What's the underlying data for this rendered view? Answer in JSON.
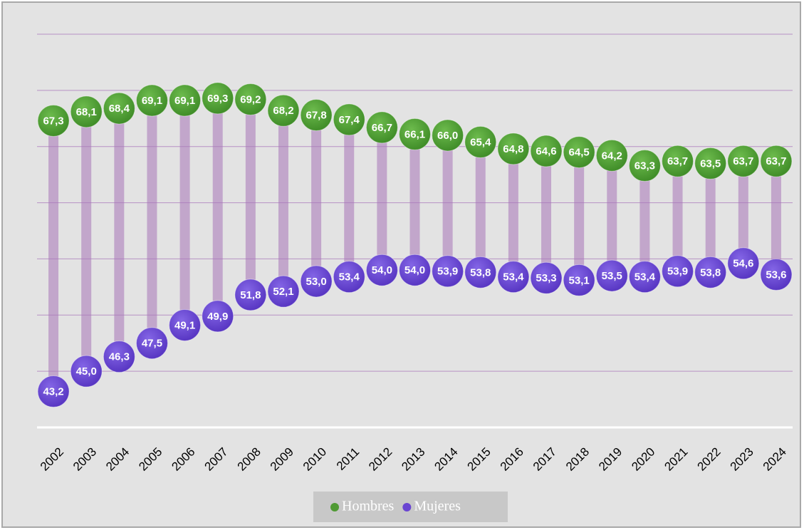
{
  "chart_data": {
    "type": "dumbbell",
    "categories": [
      "2002",
      "2003",
      "2004",
      "2005",
      "2006",
      "2007",
      "2008",
      "2009",
      "2010",
      "2011",
      "2012",
      "2013",
      "2014",
      "2015",
      "2016",
      "2017",
      "2018",
      "2019",
      "2020",
      "2021",
      "2022",
      "2023",
      "2024"
    ],
    "series": [
      {
        "name": "Hombres",
        "color": "#4f9a33",
        "values": [
          67.3,
          68.1,
          68.4,
          69.1,
          69.1,
          69.3,
          69.2,
          68.2,
          67.8,
          67.4,
          66.7,
          66.1,
          66.0,
          65.4,
          64.8,
          64.6,
          64.5,
          64.2,
          63.3,
          63.7,
          63.5,
          63.7,
          63.7
        ],
        "value_labels": [
          "67,3",
          "68,1",
          "68,4",
          "69,1",
          "69,1",
          "69,3",
          "69,2",
          "68,2",
          "67,8",
          "67,4",
          "66,7",
          "66,1",
          "66,0",
          "65,4",
          "64,8",
          "64,6",
          "64,5",
          "64,2",
          "63,3",
          "63,7",
          "63,5",
          "63,7",
          "63,7"
        ]
      },
      {
        "name": "Mujeres",
        "color": "#6a45d2",
        "values": [
          43.2,
          45.0,
          46.3,
          47.5,
          49.1,
          49.9,
          51.8,
          52.1,
          53.0,
          53.4,
          54.0,
          54.0,
          53.9,
          53.8,
          53.4,
          53.3,
          53.1,
          53.5,
          53.4,
          53.9,
          53.8,
          54.6,
          53.6
        ],
        "value_labels": [
          "43,2",
          "45,0",
          "46,3",
          "47,5",
          "49,1",
          "49,9",
          "51,8",
          "52,1",
          "53,0",
          "53,4",
          "54,0",
          "54,0",
          "53,9",
          "53,8",
          "53,4",
          "53,3",
          "53,1",
          "53,5",
          "53,4",
          "53,9",
          "53,8",
          "54,6",
          "53,6"
        ]
      }
    ],
    "ylim": [
      40,
      75
    ],
    "yticks": [
      40,
      45,
      50,
      55,
      60,
      65,
      70,
      75
    ],
    "grid": true,
    "legend": "bottom"
  }
}
